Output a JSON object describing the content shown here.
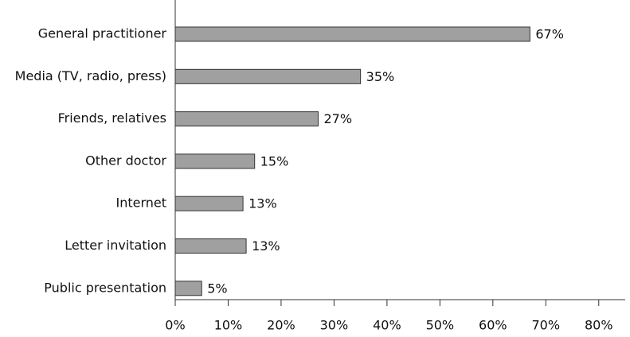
{
  "chart_data": {
    "type": "bar",
    "orientation": "horizontal",
    "categories": [
      "General practitioner",
      "Media (TV, radio, press)",
      "Friends, relatives",
      "Other doctor",
      "Internet",
      "Letter invitation",
      "Public presentation"
    ],
    "values": [
      67,
      35,
      27,
      15,
      12.8,
      13.4,
      5
    ],
    "value_labels": [
      "67%",
      "35%",
      "27%",
      "15%",
      "13%",
      "13%",
      "5%"
    ],
    "color": "#a0a0a0",
    "xlim": [
      0,
      85
    ],
    "xticks": [
      {
        "value": 0,
        "label": "0%"
      },
      {
        "value": 10,
        "label": "10%"
      },
      {
        "value": 20,
        "label": "20%"
      },
      {
        "value": 30,
        "label": "30%"
      },
      {
        "value": 40,
        "label": "40%"
      },
      {
        "value": 50,
        "label": "50%"
      },
      {
        "value": 60,
        "label": "60%"
      },
      {
        "value": 70,
        "label": "70%"
      },
      {
        "value": 80,
        "label": "80%"
      }
    ]
  }
}
